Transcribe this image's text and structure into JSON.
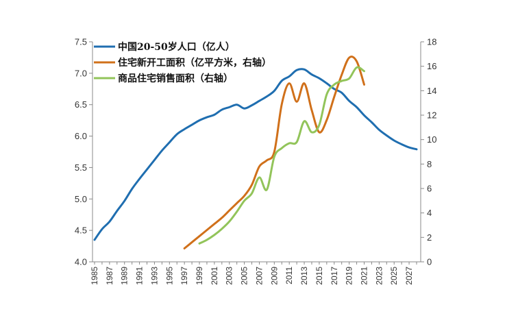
{
  "chart_data": {
    "type": "line",
    "title": "",
    "xlabel": "",
    "ylabel": "",
    "y_left": {
      "min": 4.0,
      "max": 7.5,
      "ticks": [
        "4.0",
        "4.5",
        "5.0",
        "5.5",
        "6.0",
        "6.5",
        "7.0",
        "7.5"
      ]
    },
    "y_right": {
      "min": 0,
      "max": 18,
      "ticks": [
        "0",
        "2",
        "4",
        "6",
        "8",
        "10",
        "12",
        "14",
        "16",
        "18"
      ]
    },
    "x_range": [
      1985,
      2028
    ],
    "x_ticks": [
      "1985",
      "1987",
      "1989",
      "1991",
      "1993",
      "1995",
      "1997",
      "1999",
      "2001",
      "2003",
      "2005",
      "2007",
      "2009",
      "2011",
      "2013",
      "2015",
      "2017",
      "2019",
      "2021",
      "2023",
      "2025",
      "2027"
    ],
    "grid": false,
    "legend_position": "top-left",
    "series": [
      {
        "name": "中国20-50岁人口（亿人）",
        "axis": "left",
        "color": "#1f6eb0",
        "x": [
          1985,
          1986,
          1987,
          1988,
          1989,
          1990,
          1991,
          1992,
          1993,
          1994,
          1995,
          1996,
          1997,
          1998,
          1999,
          2000,
          2001,
          2002,
          2003,
          2004,
          2005,
          2006,
          2007,
          2008,
          2009,
          2010,
          2011,
          2012,
          2013,
          2014,
          2015,
          2016,
          2017,
          2018,
          2019,
          2020,
          2021,
          2022,
          2023,
          2024,
          2025,
          2026,
          2027,
          2028
        ],
        "y": [
          4.35,
          4.52,
          4.64,
          4.81,
          4.97,
          5.16,
          5.32,
          5.47,
          5.62,
          5.77,
          5.9,
          6.03,
          6.11,
          6.18,
          6.25,
          6.3,
          6.34,
          6.42,
          6.46,
          6.5,
          6.44,
          6.49,
          6.56,
          6.63,
          6.72,
          6.88,
          6.95,
          7.05,
          7.06,
          6.98,
          6.92,
          6.84,
          6.75,
          6.69,
          6.56,
          6.46,
          6.33,
          6.22,
          6.1,
          6.01,
          5.93,
          5.87,
          5.82,
          5.79
        ]
      },
      {
        "name": "住宅新开工面积（亿平方米，右轴）",
        "axis": "right",
        "color": "#d0701a",
        "x": [
          1997,
          1998,
          1999,
          2000,
          2001,
          2002,
          2003,
          2004,
          2005,
          2006,
          2007,
          2008,
          2009,
          2010,
          2011,
          2012,
          2013,
          2014,
          2015,
          2016,
          2017,
          2018,
          2019,
          2020,
          2021
        ],
        "y": [
          1.1,
          1.6,
          2.1,
          2.6,
          3.1,
          3.6,
          4.2,
          4.8,
          5.4,
          6.3,
          7.8,
          8.3,
          9.0,
          12.9,
          14.6,
          13.1,
          14.6,
          12.4,
          10.6,
          11.6,
          13.5,
          15.3,
          16.7,
          16.4,
          14.5
        ]
      },
      {
        "name": "商品住宅销售面积（右轴）",
        "axis": "right",
        "color": "#92c45a",
        "x": [
          1999,
          2000,
          2001,
          2002,
          2003,
          2004,
          2005,
          2006,
          2007,
          2008,
          2009,
          2010,
          2011,
          2012,
          2013,
          2014,
          2015,
          2016,
          2017,
          2018,
          2019,
          2020,
          2021
        ],
        "y": [
          1.5,
          1.8,
          2.2,
          2.7,
          3.3,
          4.1,
          5.0,
          5.6,
          6.9,
          5.9,
          8.6,
          9.3,
          9.7,
          9.8,
          11.5,
          10.6,
          11.2,
          13.7,
          14.5,
          14.8,
          15.0,
          15.9,
          15.6
        ]
      }
    ]
  }
}
